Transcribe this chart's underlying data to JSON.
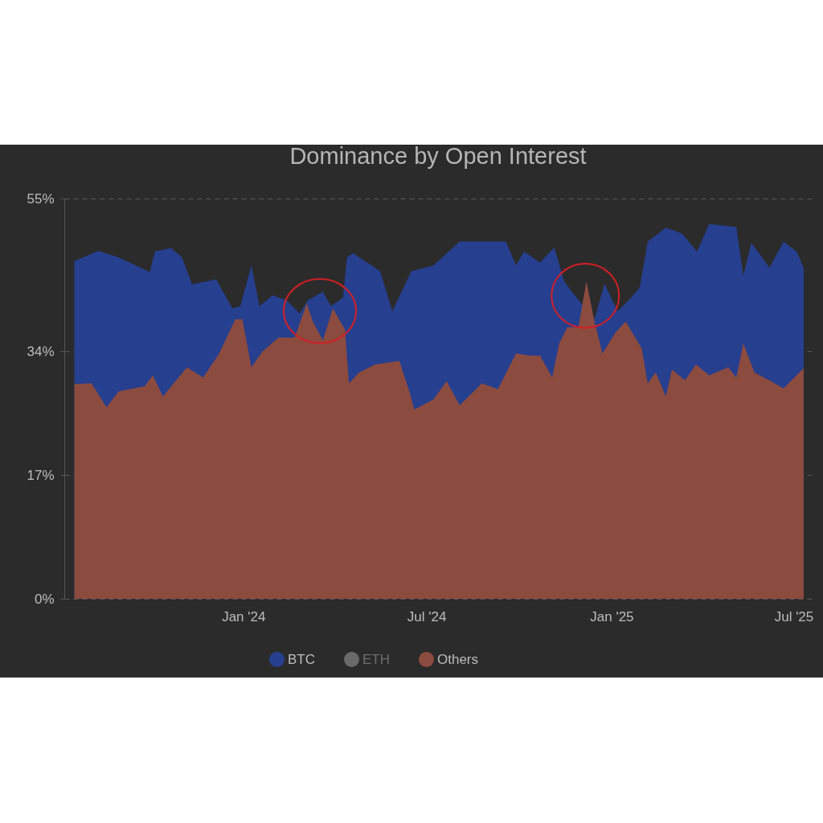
{
  "chart_data": {
    "type": "area",
    "title": "Dominance by Open Interest",
    "series": [
      {
        "name": "BTC",
        "color": "#263f8f",
        "x": [
          "2023-07-17",
          "2023-08-10",
          "2023-08-30",
          "2023-09-30",
          "2023-10-05",
          "2023-10-21",
          "2023-11-01",
          "2023-11-11",
          "2023-12-05",
          "2023-12-21",
          "2023-12-29",
          "2024-01-09",
          "2024-01-17",
          "2024-01-30",
          "2024-02-13",
          "2024-02-26",
          "2024-03-05",
          "2024-03-20",
          "2024-03-28",
          "2024-04-09",
          "2024-04-13",
          "2024-04-19",
          "2024-05-16",
          "2024-05-28",
          "2024-06-16",
          "2024-07-08",
          "2024-08-03",
          "2024-09-18",
          "2024-09-28",
          "2024-10-06",
          "2024-10-22",
          "2024-11-05",
          "2024-11-15",
          "2024-11-23",
          "2024-12-04",
          "2024-12-15",
          "2024-12-25",
          "2025-01-07",
          "2025-01-18",
          "2025-01-29",
          "2025-02-06",
          "2025-02-24",
          "2025-03-12",
          "2025-03-27",
          "2025-04-08",
          "2025-05-05",
          "2025-05-12",
          "2025-05-20",
          "2025-06-07",
          "2025-06-21",
          "2025-07-04",
          "2025-07-11"
        ],
        "values": [
          46.4,
          47.8,
          46.9,
          44.9,
          47.7,
          48.2,
          46.9,
          43.2,
          43.9,
          39.9,
          40.2,
          45.8,
          40.2,
          41.7,
          41.0,
          39.2,
          41.0,
          42.2,
          40.2,
          41.4,
          46.9,
          47.5,
          45.0,
          39.5,
          45.0,
          45.8,
          49.1,
          49.1,
          45.8,
          47.7,
          46.2,
          48.3,
          43.6,
          42.1,
          null,
          38.4,
          43.3,
          39.5,
          41.0,
          42.8,
          49.1,
          51.0,
          50.2,
          47.7,
          51.5,
          51.1,
          44.4,
          48.9,
          45.5,
          49.1,
          47.7,
          45.5
        ]
      },
      {
        "name": "ETH",
        "color": "#6a6a6a"
      },
      {
        "name": "Others",
        "color": "#8c4b3f",
        "x": [
          "2023-07-17",
          "2023-08-03",
          "2023-08-18",
          "2023-08-30",
          "2023-09-25",
          "2023-10-03",
          "2023-10-13",
          "2023-11-06",
          "2023-11-22",
          "2023-12-08",
          "2023-12-24",
          "2023-12-31",
          "2024-01-09",
          "2024-01-20",
          "2024-02-05",
          "2024-02-21",
          "2024-03-04",
          "2024-03-10",
          "2024-03-20",
          "2024-03-30",
          "2024-04-11",
          "2024-04-15",
          "2024-04-25",
          "2024-05-11",
          "2024-06-04",
          "2024-06-14",
          "2024-06-19",
          "2024-07-08",
          "2024-07-21",
          "2024-08-03",
          "2024-08-25",
          "2024-09-10",
          "2024-09-28",
          "2024-10-12",
          "2024-10-22",
          "2024-11-03",
          "2024-11-10",
          "2024-11-18",
          "2024-11-29",
          "2024-12-07",
          "2024-12-15",
          "2024-12-23",
          "2025-01-05",
          "2025-01-15",
          "2025-01-31",
          "2025-02-06",
          "2025-02-14",
          "2025-02-24",
          "2025-03-02",
          "2025-03-15",
          "2025-03-26",
          "2025-04-08",
          "2025-04-27",
          "2025-05-05",
          "2025-05-12",
          "2025-05-23",
          "2025-06-07",
          "2025-06-21",
          "2025-07-11"
        ],
        "values": [
          29.5,
          29.6,
          26.3,
          28.5,
          29.2,
          30.7,
          27.8,
          31.8,
          30.4,
          33.7,
          38.4,
          38.4,
          31.8,
          34.0,
          35.9,
          35.9,
          40.6,
          38.1,
          35.5,
          39.9,
          37.0,
          29.6,
          31.1,
          32.2,
          32.7,
          28.5,
          26.0,
          27.4,
          29.9,
          26.6,
          29.6,
          28.8,
          33.7,
          33.4,
          33.4,
          30.4,
          35.1,
          37.3,
          37.3,
          43.6,
          38.1,
          33.7,
          36.6,
          38.1,
          34.4,
          29.6,
          31.1,
          27.8,
          31.5,
          30.0,
          32.2,
          30.7,
          31.8,
          30.4,
          35.1,
          31.1,
          30.0,
          28.9,
          31.7
        ]
      }
    ],
    "xlim": [
      "2023-07-07",
      "2025-07-19"
    ],
    "xticks": [
      {
        "value": "2024-01-01",
        "label": "Jan '24"
      },
      {
        "value": "2024-07-01",
        "label": "Jul '24"
      },
      {
        "value": "2025-01-01",
        "label": "Jan '25"
      },
      {
        "value": "2025-07-01",
        "label": "Jul '25"
      }
    ],
    "ylim": [
      0,
      55
    ],
    "yticks": [
      {
        "value": 0,
        "label": "0%"
      },
      {
        "value": 17,
        "label": "17%"
      },
      {
        "value": 34,
        "label": "34%"
      },
      {
        "value": 55,
        "label": "55%"
      }
    ],
    "grid": "y",
    "legend": "bottom"
  }
}
